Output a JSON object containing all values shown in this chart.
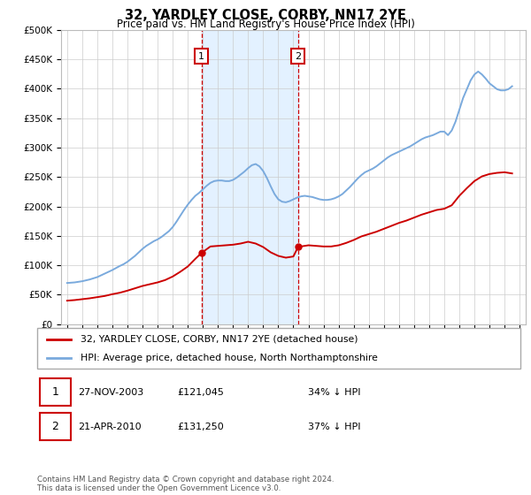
{
  "title": "32, YARDLEY CLOSE, CORBY, NN17 2YE",
  "subtitle": "Price paid vs. HM Land Registry's House Price Index (HPI)",
  "ylabel_ticks": [
    "£0",
    "£50K",
    "£100K",
    "£150K",
    "£200K",
    "£250K",
    "£300K",
    "£350K",
    "£400K",
    "£450K",
    "£500K"
  ],
  "ytick_values": [
    0,
    50000,
    100000,
    150000,
    200000,
    250000,
    300000,
    350000,
    400000,
    450000,
    500000
  ],
  "ylim": [
    0,
    500000
  ],
  "xlim_start": 1994.6,
  "xlim_end": 2025.4,
  "grid_color": "#cccccc",
  "hpi_color": "#7aaadd",
  "price_color": "#cc0000",
  "shade_color": "#ddeeff",
  "sale1_date_x": 2003.91,
  "sale2_date_x": 2010.31,
  "sale1_price": 121045,
  "sale2_price": 131250,
  "legend_line1": "32, YARDLEY CLOSE, CORBY, NN17 2YE (detached house)",
  "legend_line2": "HPI: Average price, detached house, North Northamptonshire",
  "table_row1": [
    "1",
    "27-NOV-2003",
    "£121,045",
    "34% ↓ HPI"
  ],
  "table_row2": [
    "2",
    "21-APR-2010",
    "£131,250",
    "37% ↓ HPI"
  ],
  "footnote": "Contains HM Land Registry data © Crown copyright and database right 2024.\nThis data is licensed under the Open Government Licence v3.0.",
  "hpi_data_x": [
    1995.0,
    1995.25,
    1995.5,
    1995.75,
    1996.0,
    1996.25,
    1996.5,
    1996.75,
    1997.0,
    1997.25,
    1997.5,
    1997.75,
    1998.0,
    1998.25,
    1998.5,
    1998.75,
    1999.0,
    1999.25,
    1999.5,
    1999.75,
    2000.0,
    2000.25,
    2000.5,
    2000.75,
    2001.0,
    2001.25,
    2001.5,
    2001.75,
    2002.0,
    2002.25,
    2002.5,
    2002.75,
    2003.0,
    2003.25,
    2003.5,
    2003.75,
    2004.0,
    2004.25,
    2004.5,
    2004.75,
    2005.0,
    2005.25,
    2005.5,
    2005.75,
    2006.0,
    2006.25,
    2006.5,
    2006.75,
    2007.0,
    2007.25,
    2007.5,
    2007.75,
    2008.0,
    2008.25,
    2008.5,
    2008.75,
    2009.0,
    2009.25,
    2009.5,
    2009.75,
    2010.0,
    2010.25,
    2010.5,
    2010.75,
    2011.0,
    2011.25,
    2011.5,
    2011.75,
    2012.0,
    2012.25,
    2012.5,
    2012.75,
    2013.0,
    2013.25,
    2013.5,
    2013.75,
    2014.0,
    2014.25,
    2014.5,
    2014.75,
    2015.0,
    2015.25,
    2015.5,
    2015.75,
    2016.0,
    2016.25,
    2016.5,
    2016.75,
    2017.0,
    2017.25,
    2017.5,
    2017.75,
    2018.0,
    2018.25,
    2018.5,
    2018.75,
    2019.0,
    2019.25,
    2019.5,
    2019.75,
    2020.0,
    2020.25,
    2020.5,
    2020.75,
    2021.0,
    2021.25,
    2021.5,
    2021.75,
    2022.0,
    2022.25,
    2022.5,
    2022.75,
    2023.0,
    2023.25,
    2023.5,
    2023.75,
    2024.0,
    2024.25,
    2024.5
  ],
  "hpi_data_y": [
    70000,
    70500,
    71000,
    72000,
    73000,
    74500,
    76000,
    78000,
    80000,
    83000,
    86000,
    89000,
    92000,
    95500,
    99000,
    102000,
    106000,
    111000,
    116000,
    122000,
    128000,
    133000,
    137000,
    141000,
    144000,
    148000,
    153000,
    158000,
    165000,
    174000,
    184000,
    194000,
    203000,
    211000,
    218000,
    223000,
    229000,
    235000,
    240000,
    243000,
    244000,
    244000,
    243000,
    243000,
    245000,
    249000,
    254000,
    259000,
    265000,
    270000,
    272000,
    268000,
    260000,
    248000,
    234000,
    221000,
    212000,
    208000,
    207000,
    209000,
    212000,
    215000,
    217000,
    218000,
    217000,
    216000,
    214000,
    212000,
    211000,
    211000,
    212000,
    214000,
    217000,
    221000,
    227000,
    233000,
    240000,
    247000,
    253000,
    258000,
    261000,
    264000,
    268000,
    273000,
    278000,
    283000,
    287000,
    290000,
    293000,
    296000,
    299000,
    302000,
    306000,
    310000,
    314000,
    317000,
    319000,
    321000,
    324000,
    327000,
    327000,
    321000,
    329000,
    344000,
    364000,
    384000,
    399000,
    414000,
    424000,
    429000,
    424000,
    417000,
    409000,
    404000,
    399000,
    397000,
    397000,
    399000,
    404000
  ],
  "price_data_x": [
    1995.0,
    1995.5,
    1996.0,
    1996.5,
    1997.0,
    1997.5,
    1998.0,
    1998.5,
    1999.0,
    1999.5,
    2000.0,
    2000.5,
    2001.0,
    2001.5,
    2002.0,
    2002.5,
    2003.0,
    2003.5,
    2003.91,
    2004.5,
    2005.0,
    2005.5,
    2006.0,
    2006.5,
    2007.0,
    2007.5,
    2008.0,
    2008.5,
    2009.0,
    2009.5,
    2010.0,
    2010.31,
    2011.0,
    2011.5,
    2012.0,
    2012.5,
    2013.0,
    2013.5,
    2014.0,
    2014.5,
    2015.0,
    2015.5,
    2016.0,
    2016.5,
    2017.0,
    2017.5,
    2018.0,
    2018.5,
    2019.0,
    2019.5,
    2020.0,
    2020.5,
    2021.0,
    2021.5,
    2022.0,
    2022.5,
    2023.0,
    2023.5,
    2024.0,
    2024.5
  ],
  "price_data_y": [
    40000,
    41000,
    42500,
    44000,
    46000,
    48000,
    51000,
    53500,
    57000,
    61000,
    65000,
    68000,
    71000,
    75000,
    81000,
    89000,
    98000,
    111000,
    121045,
    132000,
    133000,
    134000,
    135000,
    137000,
    140000,
    137000,
    131000,
    122000,
    116000,
    113000,
    115000,
    131250,
    134000,
    133000,
    132000,
    132000,
    134000,
    138000,
    143000,
    149000,
    153000,
    157000,
    162000,
    167000,
    172000,
    176000,
    181000,
    186000,
    190000,
    194000,
    196000,
    202000,
    218000,
    231000,
    243000,
    251000,
    255000,
    257000,
    258000,
    256000
  ]
}
